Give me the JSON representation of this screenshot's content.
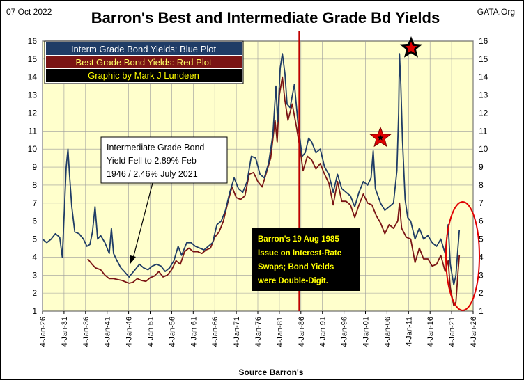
{
  "header": {
    "date": "07 Oct 2022",
    "title": "Barron's Best and Intermediate Grade Bd Yields",
    "brand": "GATA.Org"
  },
  "legend": {
    "entries": [
      {
        "label": "Interm Grade Bond Yields: Blue Plot",
        "text_color": "#ffffff",
        "bg": "#1f3c66"
      },
      {
        "label": "Best Grade Bond Yields: Red Plot",
        "text_color": "#ffff66",
        "bg": "#7a1414"
      },
      {
        "label": "Graphic by Mark J Lundeen",
        "text_color": "#ffff00",
        "bg": "#000000"
      }
    ]
  },
  "annotations": {
    "low_note": [
      "Intermediate Grade Bond",
      "Yield Fell to 2.89% Feb",
      "1946  / 2.46%  July 2021"
    ],
    "swaps_note": [
      "Barron's  19 Aug 1985",
      "Issue on Interest-Rate",
      "Swaps;  Bond Yields",
      "were Double-Digit."
    ]
  },
  "chart_data": {
    "type": "line",
    "title": "Barron's Best and Intermediate Grade Bd Yields",
    "xlabel": "Source Barron's",
    "ylabel": "",
    "xlim": [
      1926,
      2026
    ],
    "ylim": [
      1,
      16
    ],
    "y_ticks": [
      1,
      2,
      3,
      4,
      5,
      6,
      7,
      8,
      9,
      10,
      11,
      12,
      13,
      14,
      15,
      16
    ],
    "x_tick_labels": [
      "4-Jan-26",
      "4-Jan-31",
      "4-Jan-36",
      "4-Jan-41",
      "4-Jan-46",
      "4-Jan-51",
      "4-Jan-56",
      "4-Jan-61",
      "4-Jan-66",
      "4-Jan-71",
      "4-Jan-76",
      "4-Jan-81",
      "4-Jan-86",
      "4-Jan-91",
      "4-Jan-96",
      "4-Jan-01",
      "4-Jan-06",
      "4-Jan-11",
      "4-Jan-16",
      "4-Jan-21",
      "4-Jan-26"
    ],
    "x_tick_years": [
      1926,
      1931,
      1936,
      1941,
      1946,
      1951,
      1956,
      1961,
      1966,
      1971,
      1976,
      1981,
      1986,
      1991,
      1996,
      2001,
      2006,
      2011,
      2016,
      2021,
      2026
    ],
    "grid": true,
    "legend_position": "top-left",
    "vertical_marker": {
      "x": 1985.6,
      "color": "#c00000"
    },
    "series": [
      {
        "name": "Interm Grade Bond Yields: Blue Plot",
        "color": "#1f3c66",
        "points": [
          [
            1926.0,
            5.0
          ],
          [
            1927.0,
            4.8
          ],
          [
            1928.0,
            5.0
          ],
          [
            1929.0,
            5.3
          ],
          [
            1930.0,
            5.1
          ],
          [
            1930.6,
            4.0
          ],
          [
            1931.0,
            6.2
          ],
          [
            1931.5,
            9.0
          ],
          [
            1931.9,
            10.0
          ],
          [
            1932.3,
            8.5
          ],
          [
            1932.8,
            6.8
          ],
          [
            1933.5,
            5.4
          ],
          [
            1934.5,
            5.3
          ],
          [
            1935.5,
            5.0
          ],
          [
            1936.3,
            4.6
          ],
          [
            1937.0,
            4.7
          ],
          [
            1937.6,
            5.4
          ],
          [
            1938.2,
            6.8
          ],
          [
            1938.8,
            5.0
          ],
          [
            1939.5,
            5.2
          ],
          [
            1940.5,
            4.8
          ],
          [
            1941.5,
            4.2
          ],
          [
            1942.0,
            5.6
          ],
          [
            1942.5,
            4.2
          ],
          [
            1943.3,
            3.8
          ],
          [
            1944.2,
            3.4
          ],
          [
            1945.0,
            3.2
          ],
          [
            1946.1,
            2.89
          ],
          [
            1946.8,
            3.1
          ],
          [
            1947.5,
            3.3
          ],
          [
            1948.5,
            3.6
          ],
          [
            1949.5,
            3.4
          ],
          [
            1950.5,
            3.3
          ],
          [
            1951.5,
            3.5
          ],
          [
            1952.5,
            3.6
          ],
          [
            1953.5,
            3.5
          ],
          [
            1954.5,
            3.2
          ],
          [
            1955.5,
            3.4
          ],
          [
            1956.5,
            3.8
          ],
          [
            1957.5,
            4.6
          ],
          [
            1958.3,
            4.1
          ],
          [
            1959.5,
            4.8
          ],
          [
            1960.5,
            4.8
          ],
          [
            1961.5,
            4.6
          ],
          [
            1962.5,
            4.5
          ],
          [
            1963.5,
            4.4
          ],
          [
            1964.5,
            4.6
          ],
          [
            1965.5,
            4.8
          ],
          [
            1966.5,
            5.8
          ],
          [
            1967.5,
            6.0
          ],
          [
            1968.5,
            6.6
          ],
          [
            1969.5,
            7.6
          ],
          [
            1970.5,
            8.4
          ],
          [
            1971.5,
            7.8
          ],
          [
            1972.5,
            7.6
          ],
          [
            1973.5,
            8.2
          ],
          [
            1974.5,
            9.6
          ],
          [
            1975.5,
            9.5
          ],
          [
            1976.5,
            8.6
          ],
          [
            1977.5,
            8.4
          ],
          [
            1978.5,
            9.2
          ],
          [
            1979.5,
            10.8
          ],
          [
            1980.2,
            13.5
          ],
          [
            1980.6,
            11.5
          ],
          [
            1981.2,
            14.5
          ],
          [
            1981.7,
            15.3
          ],
          [
            1982.3,
            14.2
          ],
          [
            1982.8,
            12.5
          ],
          [
            1983.5,
            12.3
          ],
          [
            1984.5,
            13.6
          ],
          [
            1985.5,
            11.0
          ],
          [
            1986.3,
            9.6
          ],
          [
            1987.0,
            9.8
          ],
          [
            1987.8,
            10.6
          ],
          [
            1988.5,
            10.4
          ],
          [
            1989.5,
            9.8
          ],
          [
            1990.5,
            10.0
          ],
          [
            1991.5,
            9.0
          ],
          [
            1992.5,
            8.6
          ],
          [
            1993.5,
            7.6
          ],
          [
            1994.5,
            8.6
          ],
          [
            1995.5,
            7.8
          ],
          [
            1996.5,
            7.6
          ],
          [
            1997.5,
            7.4
          ],
          [
            1998.5,
            6.8
          ],
          [
            1999.5,
            7.6
          ],
          [
            2000.5,
            8.2
          ],
          [
            2001.5,
            8.0
          ],
          [
            2002.3,
            8.4
          ],
          [
            2002.8,
            9.9
          ],
          [
            2003.3,
            7.8
          ],
          [
            2004.5,
            7.0
          ],
          [
            2005.5,
            6.6
          ],
          [
            2006.5,
            6.8
          ],
          [
            2007.5,
            7.0
          ],
          [
            2008.3,
            8.8
          ],
          [
            2008.7,
            12.0
          ],
          [
            2008.9,
            15.3
          ],
          [
            2009.2,
            13.6
          ],
          [
            2009.6,
            10.5
          ],
          [
            2010.2,
            7.2
          ],
          [
            2010.8,
            6.2
          ],
          [
            2011.5,
            6.0
          ],
          [
            2012.5,
            5.0
          ],
          [
            2013.5,
            5.6
          ],
          [
            2014.5,
            5.0
          ],
          [
            2015.5,
            5.2
          ],
          [
            2016.5,
            4.8
          ],
          [
            2017.5,
            4.6
          ],
          [
            2018.5,
            5.0
          ],
          [
            2019.5,
            4.2
          ],
          [
            2020.2,
            5.8
          ],
          [
            2020.7,
            3.6
          ],
          [
            2021.5,
            2.46
          ],
          [
            2022.0,
            3.0
          ],
          [
            2022.5,
            4.6
          ],
          [
            2022.8,
            5.5
          ]
        ]
      },
      {
        "name": "Best Grade Bond Yields: Red Plot",
        "color": "#7a1414",
        "points": [
          [
            1936.5,
            3.9
          ],
          [
            1937.5,
            3.6
          ],
          [
            1938.3,
            3.4
          ],
          [
            1939.5,
            3.3
          ],
          [
            1940.5,
            3.0
          ],
          [
            1941.5,
            2.8
          ],
          [
            1942.5,
            2.8
          ],
          [
            1943.5,
            2.75
          ],
          [
            1944.5,
            2.7
          ],
          [
            1945.5,
            2.6
          ],
          [
            1946.1,
            2.55
          ],
          [
            1947.0,
            2.6
          ],
          [
            1948.0,
            2.8
          ],
          [
            1949.0,
            2.7
          ],
          [
            1950.0,
            2.65
          ],
          [
            1951.0,
            2.85
          ],
          [
            1952.0,
            2.95
          ],
          [
            1953.0,
            3.2
          ],
          [
            1954.0,
            2.9
          ],
          [
            1955.0,
            3.0
          ],
          [
            1956.0,
            3.3
          ],
          [
            1957.0,
            3.8
          ],
          [
            1958.0,
            3.6
          ],
          [
            1959.0,
            4.3
          ],
          [
            1960.0,
            4.5
          ],
          [
            1961.0,
            4.3
          ],
          [
            1962.0,
            4.3
          ],
          [
            1963.0,
            4.2
          ],
          [
            1964.0,
            4.4
          ],
          [
            1965.0,
            4.5
          ],
          [
            1966.0,
            5.1
          ],
          [
            1967.0,
            5.4
          ],
          [
            1968.0,
            6.0
          ],
          [
            1969.0,
            7.0
          ],
          [
            1970.0,
            7.9
          ],
          [
            1971.0,
            7.3
          ],
          [
            1972.0,
            7.2
          ],
          [
            1973.0,
            7.4
          ],
          [
            1974.0,
            8.6
          ],
          [
            1975.0,
            8.7
          ],
          [
            1976.0,
            8.2
          ],
          [
            1977.0,
            7.9
          ],
          [
            1978.0,
            8.7
          ],
          [
            1979.0,
            9.5
          ],
          [
            1980.0,
            11.6
          ],
          [
            1980.5,
            10.4
          ],
          [
            1981.0,
            13.0
          ],
          [
            1981.7,
            14.0
          ],
          [
            1982.3,
            12.7
          ],
          [
            1983.0,
            11.6
          ],
          [
            1984.0,
            12.5
          ],
          [
            1985.0,
            11.2
          ],
          [
            1985.8,
            10.0
          ],
          [
            1986.5,
            8.8
          ],
          [
            1987.5,
            9.6
          ],
          [
            1988.5,
            9.4
          ],
          [
            1989.5,
            8.9
          ],
          [
            1990.5,
            9.2
          ],
          [
            1991.5,
            8.6
          ],
          [
            1992.5,
            8.1
          ],
          [
            1993.5,
            6.9
          ],
          [
            1994.5,
            8.2
          ],
          [
            1995.5,
            7.1
          ],
          [
            1996.5,
            7.1
          ],
          [
            1997.5,
            6.9
          ],
          [
            1998.5,
            6.2
          ],
          [
            1999.5,
            6.9
          ],
          [
            2000.5,
            7.5
          ],
          [
            2001.5,
            7.0
          ],
          [
            2002.5,
            6.9
          ],
          [
            2003.5,
            6.3
          ],
          [
            2004.5,
            5.9
          ],
          [
            2005.5,
            5.3
          ],
          [
            2006.5,
            5.8
          ],
          [
            2007.5,
            5.6
          ],
          [
            2008.5,
            6.0
          ],
          [
            2008.9,
            7.0
          ],
          [
            2009.4,
            5.6
          ],
          [
            2010.5,
            5.1
          ],
          [
            2011.5,
            5.0
          ],
          [
            2012.5,
            3.7
          ],
          [
            2013.5,
            4.5
          ],
          [
            2014.5,
            3.9
          ],
          [
            2015.5,
            3.9
          ],
          [
            2016.5,
            3.5
          ],
          [
            2017.5,
            3.6
          ],
          [
            2018.5,
            4.1
          ],
          [
            2019.5,
            3.2
          ],
          [
            2020.2,
            3.8
          ],
          [
            2020.7,
            2.3
          ],
          [
            2021.5,
            1.3
          ],
          [
            2022.0,
            1.5
          ],
          [
            2022.5,
            3.2
          ],
          [
            2022.8,
            4.1
          ]
        ]
      }
    ]
  }
}
